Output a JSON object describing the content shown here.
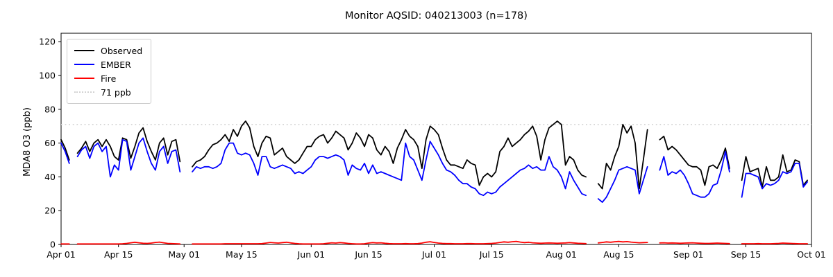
{
  "chart_data": {
    "type": "line",
    "title": "Monitor AQSID: 040213003 (n=178)",
    "x_axis": {
      "tick_labels": [
        "Apr 01",
        "Apr 15",
        "May 01",
        "May 15",
        "Jun 01",
        "Jun 15",
        "Jul 01",
        "Jul 15",
        "Aug 01",
        "Aug 15",
        "Sep 01",
        "Sep 15",
        "Oct 01"
      ],
      "tick_days": [
        0,
        14,
        30,
        44,
        61,
        75,
        91,
        105,
        122,
        136,
        153,
        167,
        183
      ],
      "range_days": [
        0,
        183
      ],
      "x_unit": "days since Apr 01, daily values"
    },
    "y_axis": {
      "label": "MDA8 O3 (ppb)",
      "ticks": [
        0,
        20,
        40,
        60,
        80,
        100,
        120
      ],
      "range": [
        0,
        125
      ]
    },
    "grid": "off",
    "threshold": {
      "label": "71 ppb",
      "value": 71,
      "color": "#d3d3d3",
      "style": "dotted"
    },
    "legend": {
      "position": "upper-left",
      "entries": [
        {
          "label": "Observed",
          "color": "#000000",
          "style": "solid"
        },
        {
          "label": "EMBER",
          "color": "#0000ff",
          "style": "solid"
        },
        {
          "label": "Fire",
          "color": "#ff0000",
          "style": "solid"
        },
        {
          "label": "71 ppb",
          "color": "#d3d3d3",
          "style": "dotted"
        }
      ]
    },
    "series": [
      {
        "name": "Observed",
        "color": "#000000",
        "values": [
          62,
          57,
          50,
          null,
          54,
          57,
          61,
          55,
          60,
          62,
          58,
          62,
          58,
          52,
          50,
          63,
          62,
          51,
          58,
          66,
          69,
          61,
          55,
          50,
          60,
          63,
          53,
          61,
          62,
          49,
          null,
          null,
          46,
          49,
          50,
          52,
          56,
          59,
          60,
          62,
          65,
          61,
          68,
          64,
          70,
          73,
          69,
          58,
          52,
          60,
          64,
          63,
          53,
          55,
          57,
          52,
          50,
          48,
          50,
          54,
          58,
          58,
          62,
          64,
          65,
          60,
          63,
          67,
          65,
          63,
          56,
          60,
          66,
          63,
          58,
          65,
          63,
          56,
          53,
          58,
          55,
          48,
          57,
          62,
          68,
          64,
          62,
          58,
          45,
          62,
          70,
          68,
          65,
          57,
          50,
          47,
          47,
          46,
          45,
          50,
          48,
          47,
          35,
          40,
          42,
          40,
          43,
          55,
          58,
          63,
          58,
          60,
          62,
          65,
          67,
          70,
          64,
          50,
          62,
          69,
          71,
          73,
          71,
          47,
          52,
          50,
          44,
          41,
          40,
          null,
          null,
          36,
          33,
          48,
          44,
          52,
          58,
          71,
          66,
          70,
          60,
          33,
          50,
          68,
          null,
          null,
          62,
          64,
          56,
          58,
          56,
          53,
          50,
          47,
          46,
          46,
          44,
          35,
          46,
          47,
          45,
          50,
          57,
          45,
          null,
          null,
          38,
          52,
          43,
          44,
          45,
          34,
          46,
          38,
          38,
          40,
          53,
          43,
          44,
          50,
          49,
          35,
          38
        ]
      },
      {
        "name": "EMBER",
        "color": "#0000ff",
        "values": [
          60,
          55,
          48,
          null,
          52,
          56,
          58,
          51,
          58,
          60,
          55,
          58,
          40,
          47,
          44,
          62,
          61,
          44,
          52,
          60,
          63,
          55,
          48,
          44,
          55,
          58,
          48,
          55,
          56,
          43,
          null,
          null,
          43,
          46,
          45,
          46,
          46,
          45,
          46,
          48,
          56,
          60,
          60,
          54,
          53,
          54,
          53,
          48,
          41,
          52,
          52,
          46,
          45,
          46,
          47,
          46,
          45,
          42,
          43,
          42,
          44,
          46,
          50,
          52,
          52,
          51,
          52,
          53,
          52,
          50,
          41,
          47,
          45,
          44,
          48,
          42,
          47,
          42,
          43,
          42,
          41,
          40,
          39,
          38,
          60,
          52,
          50,
          44,
          38,
          50,
          61,
          57,
          53,
          48,
          44,
          43,
          41,
          38,
          36,
          36,
          34,
          33,
          30,
          29,
          31,
          30,
          31,
          34,
          36,
          38,
          40,
          42,
          44,
          45,
          47,
          45,
          46,
          44,
          44,
          52,
          46,
          44,
          40,
          33,
          43,
          38,
          34,
          30,
          29,
          null,
          null,
          27,
          25,
          28,
          33,
          38,
          44,
          45,
          46,
          45,
          44,
          30,
          38,
          46,
          null,
          null,
          44,
          52,
          41,
          43,
          42,
          44,
          41,
          36,
          30,
          29,
          28,
          28,
          30,
          35,
          36,
          44,
          55,
          43,
          null,
          null,
          28,
          42,
          42,
          41,
          40,
          33,
          36,
          35,
          36,
          38,
          43,
          42,
          43,
          48,
          48,
          34,
          37
        ]
      },
      {
        "name": "Fire",
        "color": "#ff0000",
        "values": [
          0.3,
          0.3,
          0.3,
          null,
          0.3,
          0.3,
          0.3,
          0.3,
          0.3,
          0.3,
          0.3,
          0.3,
          0.3,
          0.3,
          0.3,
          0.4,
          0.6,
          1.0,
          1.3,
          1.0,
          0.7,
          0.6,
          0.8,
          1.2,
          1.4,
          1.0,
          0.6,
          0.5,
          0.4,
          0.3,
          null,
          null,
          0.3,
          0.3,
          0.3,
          0.3,
          0.3,
          0.3,
          0.3,
          0.3,
          0.4,
          0.4,
          0.4,
          0.4,
          0.4,
          0.4,
          0.4,
          0.4,
          0.4,
          0.5,
          0.8,
          1.2,
          1.0,
          0.8,
          1.1,
          1.3,
          0.9,
          0.6,
          0.4,
          0.3,
          0.3,
          0.3,
          0.3,
          0.3,
          0.4,
          0.7,
          1.0,
          0.8,
          1.1,
          0.9,
          0.6,
          0.4,
          0.3,
          0.3,
          0.4,
          0.8,
          1.1,
          0.9,
          1.0,
          0.7,
          0.5,
          0.4,
          0.4,
          0.4,
          0.5,
          0.4,
          0.4,
          0.5,
          0.8,
          1.3,
          1.6,
          1.2,
          0.8,
          0.6,
          0.5,
          0.5,
          0.4,
          0.4,
          0.4,
          0.5,
          0.5,
          0.4,
          0.4,
          0.4,
          0.5,
          0.6,
          0.8,
          1.2,
          1.5,
          1.3,
          1.6,
          1.8,
          1.4,
          1.1,
          1.3,
          1.0,
          0.8,
          0.7,
          0.8,
          0.9,
          0.8,
          0.7,
          0.8,
          0.9,
          1.1,
          0.9,
          0.7,
          0.6,
          0.5,
          null,
          null,
          0.9,
          1.2,
          1.5,
          1.3,
          1.6,
          1.8,
          1.5,
          1.7,
          1.4,
          1.2,
          1.0,
          1.1,
          1.2,
          null,
          null,
          0.9,
          1.0,
          0.8,
          0.9,
          0.8,
          0.7,
          0.8,
          0.9,
          1.0,
          0.8,
          0.7,
          0.6,
          0.6,
          0.7,
          0.8,
          0.7,
          0.6,
          0.5,
          null,
          null,
          0.4,
          0.4,
          0.4,
          0.4,
          0.5,
          0.4,
          0.4,
          0.4,
          0.5,
          0.6,
          0.8,
          0.7,
          0.6,
          0.5,
          0.4,
          0.4,
          0.4
        ]
      }
    ]
  }
}
